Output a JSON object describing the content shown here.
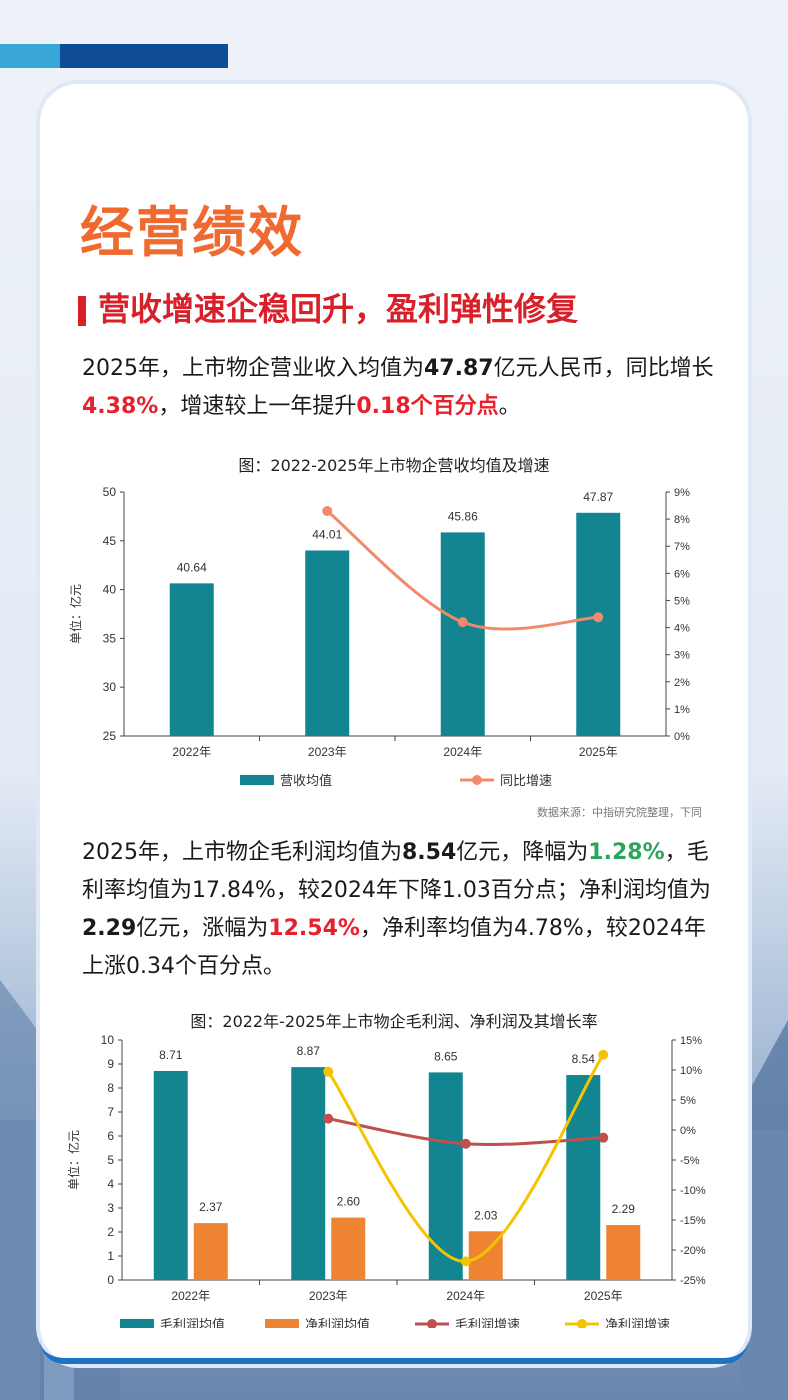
{
  "header": {
    "title": "经营绩效",
    "subtitle": "营收增速企稳回升，盈利弹性修复"
  },
  "para1": {
    "t1": "2025年，上市物企营业收入均值为",
    "v1": "47.87",
    "t2": "亿元人民币，同比增长",
    "v2": "4.38%",
    "t3": "，增速较上一年提升",
    "v3": "0.18个百分点",
    "t4": "。"
  },
  "chart1_title": "图：2022-2025年上市物企营收均值及增速",
  "source": "数据来源：中指研究院整理，下同",
  "para2": {
    "t1": "2025年，上市物企毛利润均值为",
    "v1": "8.54",
    "t2": "亿元，降幅为",
    "v2": "1.28%",
    "t3": "，毛利率均值为17.84%，较2024年下降1.03百分点；净利润均值为",
    "v3": "2.29",
    "t4": "亿元，涨幅为",
    "v4": "12.54%",
    "t5": "，净利率均值为4.78%，较2024年上涨0.34个百分点。"
  },
  "chart2_title": "图：2022年-2025年上市物企毛利润、净利润及其增长率",
  "colors": {
    "teal": "#128590",
    "orange": "#ee8332",
    "salmon": "#f08a6a",
    "darkred": "#c0504d",
    "yellow": "#f5c400"
  },
  "chart_data": [
    {
      "type": "bar",
      "title": "图：2022-2025年上市物企营收均值及增速",
      "categories": [
        "2022年",
        "2023年",
        "2024年",
        "2025年"
      ],
      "ylabel": "单位：亿元",
      "ylim": [
        25,
        50
      ],
      "yticks": [
        "50",
        "45",
        "40",
        "35",
        "30",
        "25"
      ],
      "y2lim": [
        0,
        9
      ],
      "y2ticks": [
        "9%",
        "8%",
        "7%",
        "6%",
        "5%",
        "4%",
        "3%",
        "2%",
        "1%",
        "0%"
      ],
      "series": [
        {
          "name": "营收均值",
          "type": "bar",
          "values": [
            40.64,
            44.01,
            45.86,
            47.87
          ],
          "labels": [
            "40.64",
            "44.01",
            "45.86",
            "47.87"
          ]
        },
        {
          "name": "同比增速",
          "type": "line",
          "axis": "right",
          "values": [
            null,
            8.3,
            4.2,
            4.38
          ]
        }
      ],
      "legend": "bottom"
    },
    {
      "type": "bar",
      "title": "图：2022年-2025年上市物企毛利润、净利润及其增长率",
      "categories": [
        "2022年",
        "2023年",
        "2024年",
        "2025年"
      ],
      "ylabel": "单位：亿元",
      "ylim": [
        0,
        10
      ],
      "yticks": [
        "10",
        "9",
        "8",
        "7",
        "6",
        "5",
        "4",
        "3",
        "2",
        "1",
        "0"
      ],
      "y2lim": [
        -25,
        15
      ],
      "y2ticks": [
        "15%",
        "10%",
        "5%",
        "0%",
        "-5%",
        "-10%",
        "-15%",
        "-20%",
        "-25%"
      ],
      "series": [
        {
          "name": "毛利润均值",
          "type": "bar",
          "values": [
            8.71,
            8.87,
            8.65,
            8.54
          ],
          "labels": [
            "8.71",
            "8.87",
            "8.65",
            "8.54"
          ]
        },
        {
          "name": "净利润均值",
          "type": "bar",
          "values": [
            2.37,
            2.6,
            2.03,
            2.29
          ],
          "labels": [
            "2.37",
            "2.60",
            "2.03",
            "2.29"
          ]
        },
        {
          "name": "毛利润增速",
          "type": "line",
          "axis": "right",
          "values": [
            null,
            1.9,
            -2.3,
            -1.28
          ]
        },
        {
          "name": "净利润增速",
          "type": "line",
          "axis": "right",
          "values": [
            null,
            9.7,
            -21.9,
            12.54
          ]
        }
      ],
      "legend": "bottom"
    }
  ]
}
